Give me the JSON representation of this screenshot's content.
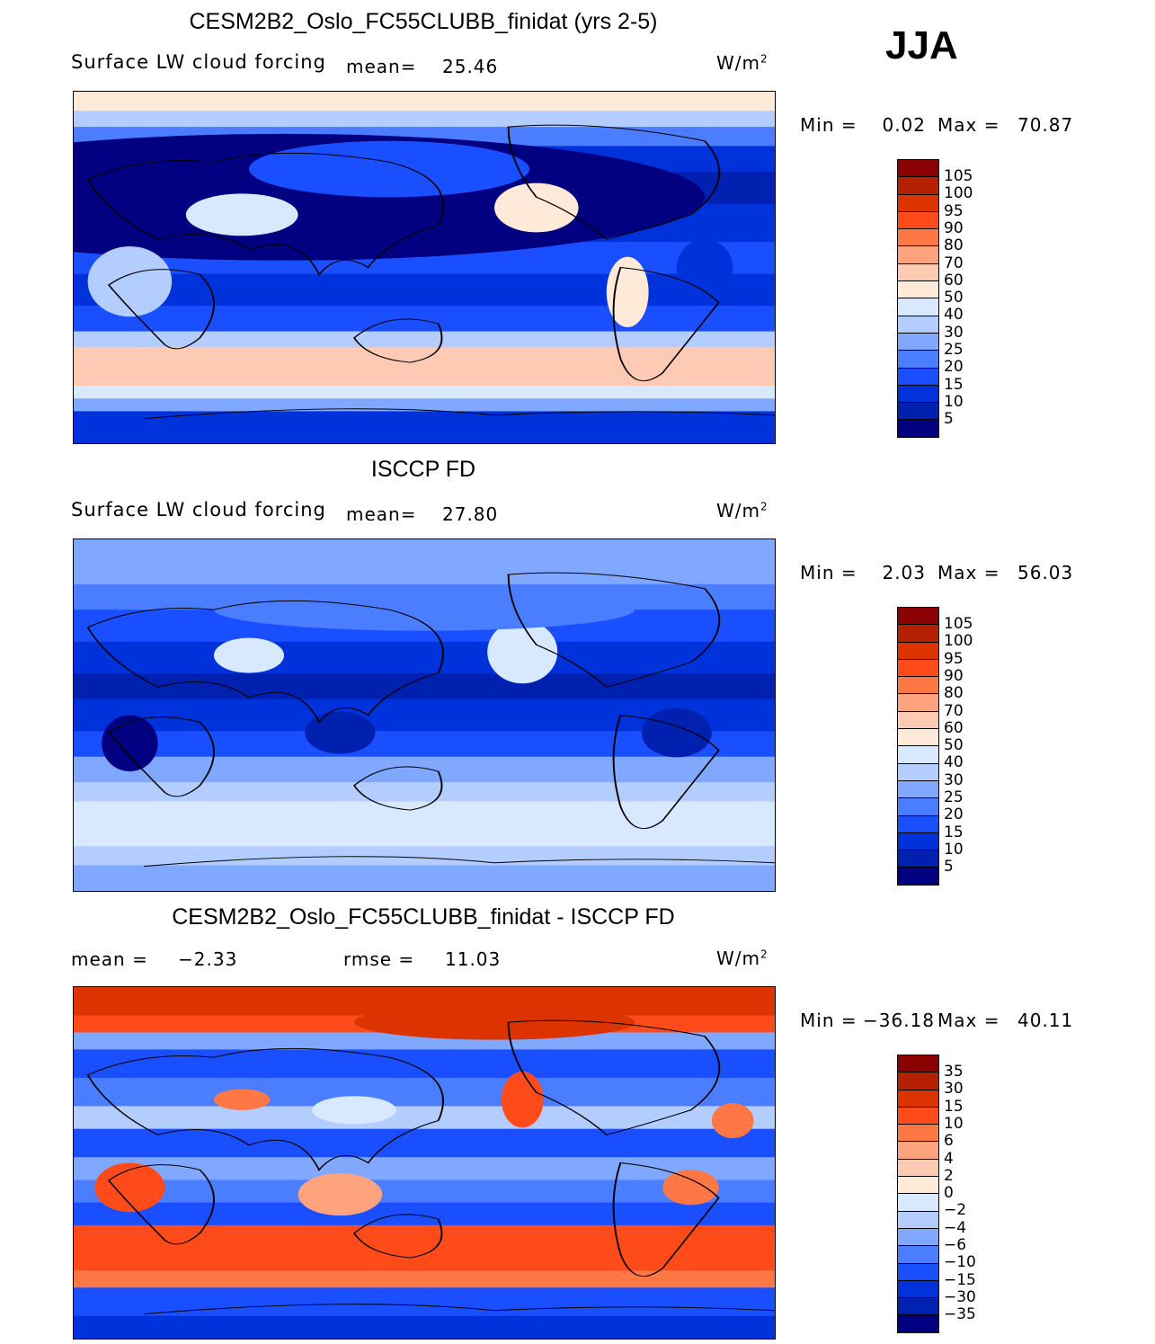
{
  "season": "JJA",
  "units": "W/m",
  "units_sup": "2",
  "colors": [
    "#8b0000",
    "#b52000",
    "#dd3300",
    "#ff4b1a",
    "#ff7744",
    "#ffa37f",
    "#ffcab3",
    "#ffe9d9",
    "#d7e8ff",
    "#b3cdff",
    "#80a8ff",
    "#4a7dff",
    "#1a4fff",
    "#0032dc",
    "#0020b0",
    "#000080"
  ],
  "chart_data": [
    {
      "type": "heatmap",
      "title": "CESM2B2_Oslo_FC55CLUBB_finidat (yrs 2-5)",
      "variable": "Surface LW cloud forcing",
      "mean_label": "mean=",
      "mean": "25.46",
      "min_label": "Min =",
      "min": "0.02",
      "max_label": "Max =",
      "max": "70.87",
      "levels": [
        "105",
        "100",
        "95",
        "90",
        "80",
        "70",
        "60",
        "50",
        "40",
        "30",
        "25",
        "20",
        "15",
        "10",
        "5"
      ]
    },
    {
      "type": "heatmap",
      "title": "ISCCP FD",
      "variable": "Surface LW cloud forcing",
      "mean_label": "mean=",
      "mean": "27.80",
      "min_label": "Min =",
      "min": "2.03",
      "max_label": "Max =",
      "max": "56.03",
      "levels": [
        "105",
        "100",
        "95",
        "90",
        "80",
        "70",
        "60",
        "50",
        "40",
        "30",
        "25",
        "20",
        "15",
        "10",
        "5"
      ]
    },
    {
      "type": "heatmap",
      "title": "CESM2B2_Oslo_FC55CLUBB_finidat - ISCCP FD",
      "mean_label": "mean =",
      "mean": "−2.33",
      "rmse_label": "rmse =",
      "rmse": "11.03",
      "min_label": "Min =",
      "min": "−36.18",
      "max_label": "Max =",
      "max": "40.11",
      "levels": [
        "35",
        "30",
        "15",
        "10",
        "6",
        "4",
        "2",
        "0",
        "−2",
        "−4",
        "−6",
        "−10",
        "−15",
        "−30",
        "−35"
      ]
    }
  ]
}
